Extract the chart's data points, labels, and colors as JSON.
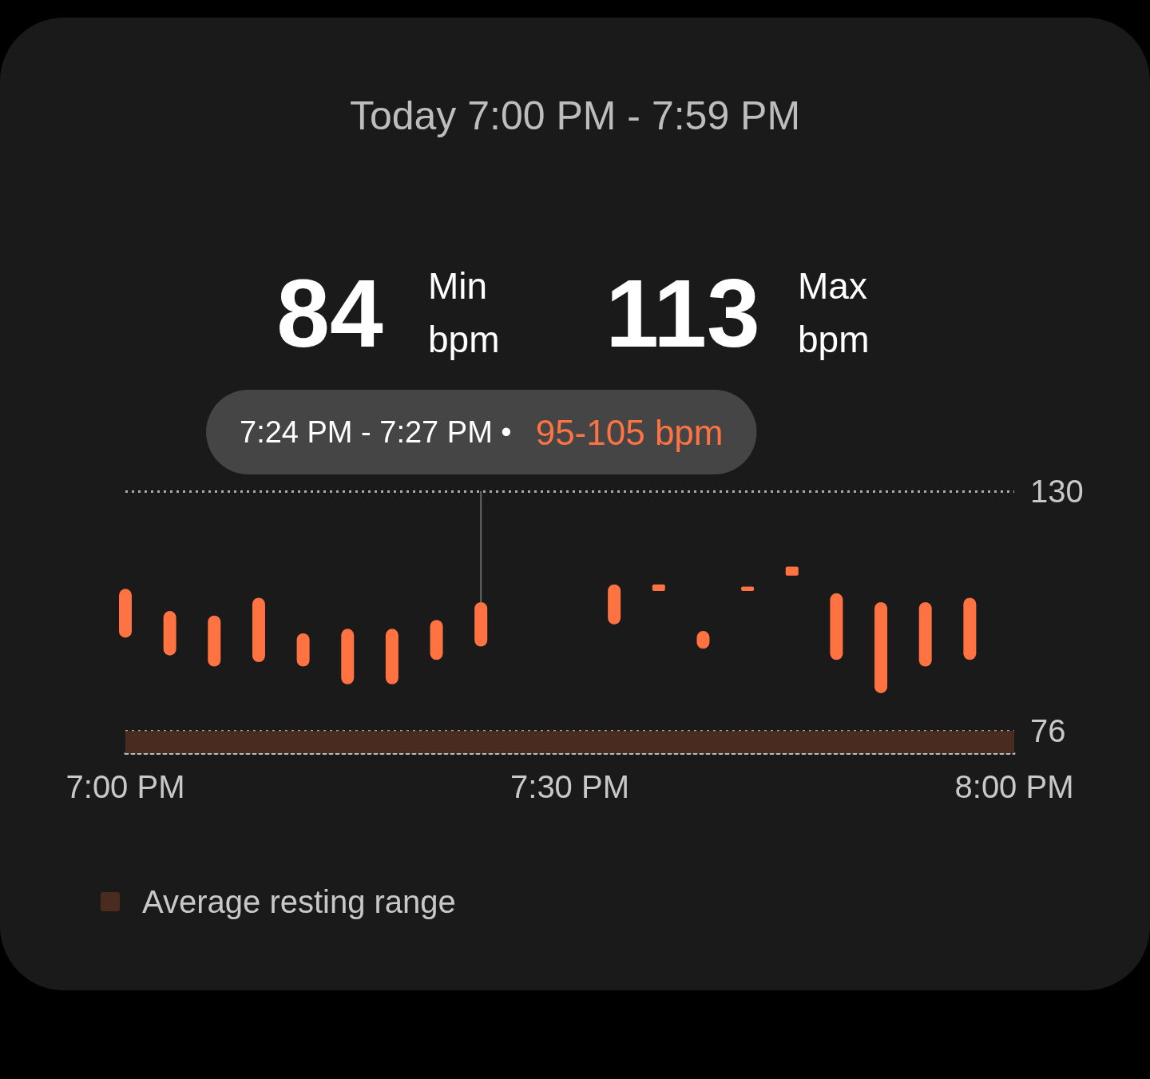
{
  "chart_data": {
    "type": "bar",
    "title": "Today 7:00 PM - 7:59 PM",
    "annotations": [
      "84",
      "Min",
      "bpm",
      "113",
      "Max",
      "bpm",
      {
        "text": "7:24 PM - 7:27 PM • 95-105 bpm",
        "x": 19.4,
        "y": 105
      }
    ],
    "x": [
      19,
      19.05,
      19.1,
      19.15,
      19.2,
      19.25,
      19.3,
      19.35,
      19.4,
      19.55,
      19.6,
      19.65,
      19.7,
      19.75,
      19.8,
      19.85,
      19.9,
      19.95
    ],
    "base": [
      97,
      93,
      90.5,
      91.5,
      90.5,
      86.5,
      86.5,
      92,
      95,
      100,
      107.5,
      94.5,
      107.5,
      111,
      92,
      84.5,
      90.5,
      92
    ],
    "values": [
      11,
      10,
      11.5,
      14.5,
      7.5,
      12.5,
      12.5,
      9,
      10,
      9,
      1.5,
      4,
      1,
      2,
      15,
      20.5,
      14.5,
      14
    ],
    "color": "#ff7241",
    "xlim": [
      19,
      20
    ],
    "xticks": [
      {
        "value": 19,
        "label": "7:00 PM"
      },
      {
        "value": 19.5,
        "label": "7:30 PM"
      },
      {
        "value": 20,
        "label": "8:00 PM"
      }
    ],
    "ylim": [
      71,
      130
    ],
    "yticks": [
      76,
      130
    ],
    "bands": [
      {
        "axis": "y",
        "from": 71,
        "to": 76,
        "label": "Average resting range",
        "color": "#4a2b20"
      }
    ],
    "grid": "y",
    "legend": "bottom left"
  }
}
